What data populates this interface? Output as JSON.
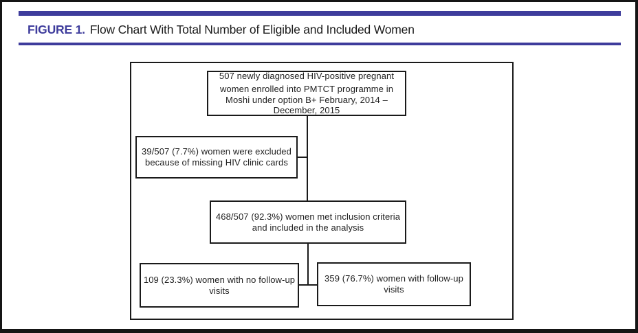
{
  "figure": {
    "label": "FIGURE 1.",
    "title": "Flow Chart With Total Number of Eligible and Included Women",
    "accent_color": "#3e3c9c"
  },
  "flowchart": {
    "nodes": {
      "enrolled": {
        "line1": "507 newly diagnosed HIV-positive pregnant",
        "rest": "women enrolled into PMTCT programme in\nMoshi under option B+ February, 2014 –\nDecember, 2015"
      },
      "excluded": {
        "text": "39/507 (7.7%) women were excluded\nbecause of missing HIV clinic cards"
      },
      "included": {
        "text": "468/507 (92.3%) women met inclusion criteria\nand included in the analysis"
      },
      "no_followup": {
        "text": "109 (23.3%) women with no follow-up\nvisits"
      },
      "followup": {
        "text": "359 (76.7%) women with follow-up\nvisits"
      }
    },
    "edges": [
      {
        "from": "enrolled",
        "to": "excluded"
      },
      {
        "from": "enrolled",
        "to": "included"
      },
      {
        "from": "included",
        "to": "no_followup"
      },
      {
        "from": "included",
        "to": "followup"
      }
    ]
  }
}
